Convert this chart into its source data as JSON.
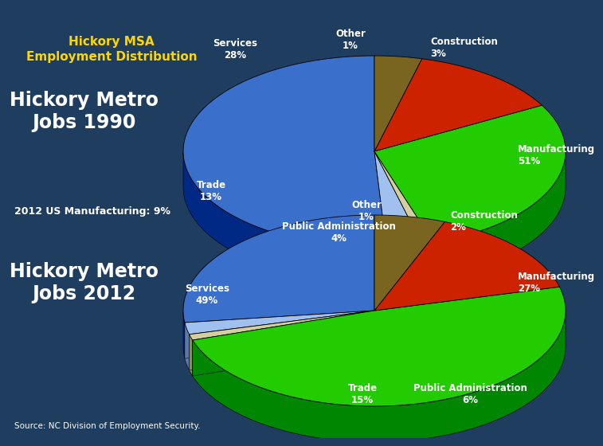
{
  "background_color": "#1e3d5f",
  "title_text": "Hickory MSA\nEmployment Distribution",
  "title_color": "#FFD700",
  "chart1": {
    "title": "Hickory Metro\nJobs 1990",
    "labels": [
      "Manufacturing",
      "Construction",
      "Other",
      "Services",
      "Trade",
      "Public Administration"
    ],
    "values": [
      51,
      3,
      1,
      28,
      13,
      4
    ],
    "colors": [
      "#3a6fcc",
      "#a0c0f0",
      "#d4cfa0",
      "#22cc00",
      "#cc2200",
      "#7a6520"
    ]
  },
  "chart2": {
    "title": "Hickory Metro\nJobs 2012",
    "labels": [
      "Manufacturing",
      "Construction",
      "Other",
      "Services",
      "Trade",
      "Public Administration"
    ],
    "values": [
      27,
      2,
      1,
      49,
      15,
      6
    ],
    "colors": [
      "#3a6fcc",
      "#a0c0f0",
      "#d4cfa0",
      "#22cc00",
      "#cc2200",
      "#7a6520"
    ]
  },
  "note1": "2012 US Manufacturing: 9%",
  "source": "Source: NC Division of Employment Security.",
  "chart1_labels": [
    [
      "Manufacturing\n51%",
      0.0,
      0.0,
      "right"
    ],
    [
      "Construction\n3%",
      0.0,
      0.0,
      "left"
    ],
    [
      "Other\n1%",
      0.0,
      0.0,
      "center"
    ],
    [
      "Services\n28%",
      0.0,
      0.0,
      "right"
    ],
    [
      "Trade\n13%",
      0.0,
      0.0,
      "right"
    ],
    [
      "Public Administration\n4%",
      0.0,
      0.0,
      "center"
    ]
  ],
  "chart2_labels": [
    [
      "Manufacturing\n27%",
      0.0,
      0.0,
      "right"
    ],
    [
      "Construction\n2%",
      0.0,
      0.0,
      "left"
    ],
    [
      "Other\n1%",
      0.0,
      0.0,
      "center"
    ],
    [
      "Services\n49%",
      0.0,
      0.0,
      "right"
    ],
    [
      "Trade\n15%",
      0.0,
      0.0,
      "center"
    ],
    [
      "Public Administration\n6%",
      0.0,
      0.0,
      "right"
    ]
  ]
}
